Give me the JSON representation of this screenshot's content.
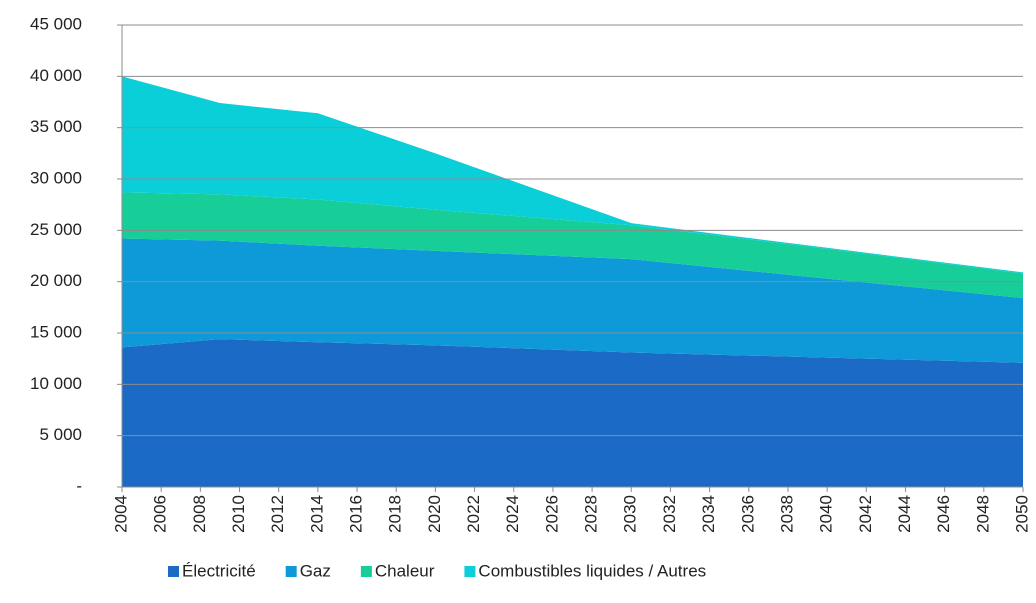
{
  "chart_data": {
    "type": "stacked_area",
    "x": [
      2004,
      2009,
      2014,
      2020,
      2030,
      2040,
      2050
    ],
    "series": [
      {
        "name": "Électricité",
        "color": "#1a6ac6",
        "values": [
          13600,
          14400,
          14100,
          13800,
          13100,
          12600,
          12100
        ]
      },
      {
        "name": "Gaz",
        "color": "#0e9ad8",
        "values": [
          10600,
          9600,
          9400,
          9200,
          9100,
          7700,
          6300
        ]
      },
      {
        "name": "Chaleur",
        "color": "#17cd98",
        "values": [
          4500,
          4500,
          4500,
          4000,
          3300,
          2900,
          2400
        ]
      },
      {
        "name": "Combustibles liquides / Autres",
        "color": "#0bcfd8",
        "values": [
          11300,
          8900,
          8400,
          5500,
          200,
          100,
          100
        ]
      }
    ],
    "xlim": [
      2004,
      2050
    ],
    "xticks": [
      2004,
      2006,
      2008,
      2010,
      2012,
      2014,
      2016,
      2018,
      2020,
      2022,
      2024,
      2026,
      2028,
      2030,
      2032,
      2034,
      2036,
      2038,
      2040,
      2042,
      2044,
      2046,
      2048,
      2050
    ],
    "ylim": [
      0,
      45000
    ],
    "yticks": [
      {
        "value": 0,
        "label": "-"
      },
      {
        "value": 5000,
        "label": "5 000"
      },
      {
        "value": 10000,
        "label": "10 000"
      },
      {
        "value": 15000,
        "label": "15 000"
      },
      {
        "value": 20000,
        "label": "20 000"
      },
      {
        "value": 25000,
        "label": "25 000"
      },
      {
        "value": 30000,
        "label": "30 000"
      },
      {
        "value": 35000,
        "label": "35 000"
      },
      {
        "value": 40000,
        "label": "40 000"
      },
      {
        "value": 45000,
        "label": "45 000"
      }
    ],
    "grid": true,
    "legend": "bottom"
  }
}
